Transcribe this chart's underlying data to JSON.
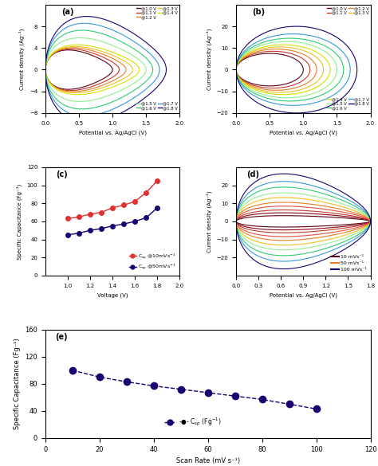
{
  "panel_a": {
    "label": "(a)",
    "ylim": [
      -8,
      12
    ],
    "yticks": [
      -8,
      -4,
      0,
      4,
      8
    ],
    "xlim": [
      0.0,
      2.0
    ],
    "xticks": [
      0.0,
      0.5,
      1.0,
      1.5,
      2.0
    ],
    "xlabel": "Potential vs. Ag/AgCl (V)",
    "ylabel": "Current density (Ag⁻¹)",
    "windows": [
      1.0,
      1.1,
      1.2,
      1.3,
      1.4,
      1.5,
      1.6,
      1.7,
      1.8
    ],
    "amplitudes": [
      3.4,
      3.6,
      3.8,
      4.0,
      4.3,
      5.5,
      6.8,
      8.0,
      9.2
    ],
    "colors": [
      "#5c0010",
      "#c0392b",
      "#e67e22",
      "#f0c020",
      "#d4e000",
      "#90ee90",
      "#2ecc71",
      "#3498db",
      "#1a0070"
    ],
    "legend1": [
      [
        "@1.0 V",
        "#5c0010"
      ],
      [
        "@1.1 V",
        "#c0392b"
      ],
      [
        "@1.2 V",
        "#e67e22"
      ],
      [
        "@1.3 V",
        "#f0c020"
      ],
      [
        "@1.4 V",
        "#d4e000"
      ]
    ],
    "legend2": [
      [
        "@1.5 V",
        "#90ee90"
      ],
      [
        "@1.6 V",
        "#2ecc71"
      ],
      [
        "@1.7 V",
        "#3498db"
      ],
      [
        "@1.8 V",
        "#1a0070"
      ]
    ]
  },
  "panel_b": {
    "label": "(b)",
    "ylim": [
      -20,
      30
    ],
    "yticks": [
      -20,
      -10,
      0,
      10,
      20
    ],
    "xlim": [
      0.0,
      2.0
    ],
    "xticks": [
      0.0,
      0.5,
      1.0,
      1.5,
      2.0
    ],
    "xlabel": "Potential vs. Ag/AgCl (V)",
    "ylabel": "Current density (Ag⁻¹)",
    "windows": [
      1.0,
      1.1,
      1.2,
      1.3,
      1.4,
      1.5,
      1.6,
      1.7,
      1.8
    ],
    "amplitudes": [
      7.5,
      8.5,
      9.5,
      10.5,
      11.5,
      13.0,
      14.5,
      16.5,
      20.0
    ],
    "colors": [
      "#5c0010",
      "#c0392b",
      "#e67e22",
      "#f0c020",
      "#d4e000",
      "#90ee90",
      "#2ecc71",
      "#3498db",
      "#1a0070"
    ],
    "legend1": [
      [
        "@1.0 V",
        "#5c0010"
      ],
      [
        "@1.1 V",
        "#c0392b"
      ],
      [
        "@1.2 V",
        "#e67e22"
      ],
      [
        "@1.3 V",
        "#f0c020"
      ]
    ],
    "legend2": [
      [
        "@1.4 V",
        "#d4e000"
      ],
      [
        "@1.5 V",
        "#90ee90"
      ],
      [
        "@1.6 V",
        "#2ecc71"
      ],
      [
        "@1.7 V",
        "#3498db"
      ],
      [
        "@1.8 V",
        "#1a0070"
      ]
    ]
  },
  "panel_c": {
    "label": "(c)",
    "xlim": [
      0.8,
      2.0
    ],
    "xticks": [
      1.0,
      1.2,
      1.4,
      1.6,
      1.8,
      2.0
    ],
    "ylim": [
      0,
      120
    ],
    "yticks": [
      0,
      20,
      40,
      60,
      80,
      100,
      120
    ],
    "xlabel": "Voltage (V)",
    "ylabel": "Specific Capacitance (Fg⁻¹)",
    "voltages": [
      1.0,
      1.1,
      1.2,
      1.3,
      1.4,
      1.5,
      1.6,
      1.7,
      1.8
    ],
    "Csp_10": [
      63,
      65,
      68,
      70,
      75,
      78,
      82,
      92,
      105
    ],
    "Csp_50": [
      45,
      47,
      50,
      52,
      55,
      57,
      60,
      64,
      75
    ],
    "color_10": "#e03030",
    "color_50": "#1a0070",
    "legend1": "C$_{sp}$ @10mVs$^{-1}$",
    "legend2": "C$_{sp}$ @50mVs$^{-1}$"
  },
  "panel_d": {
    "label": "(d)",
    "ylim": [
      -30,
      30
    ],
    "yticks": [
      -20,
      -10,
      0,
      10,
      20
    ],
    "xlim": [
      0.0,
      1.8
    ],
    "xticks": [
      0.0,
      0.3,
      0.6,
      0.9,
      1.2,
      1.5,
      1.8
    ],
    "xlabel": "Potential vs. Ag/AgCl (V)",
    "ylabel": "Current density (Ag⁻¹)",
    "amplitudes_d": [
      3.0,
      4.5,
      6.0,
      8.0,
      10.0,
      12.5,
      15.0,
      18.0,
      21.0,
      25.0
    ],
    "colors_d": [
      "#5c0010",
      "#8b0010",
      "#c0392b",
      "#e74c3c",
      "#e67e22",
      "#f0c020",
      "#90ee90",
      "#2ecc71",
      "#3498db",
      "#1a0070"
    ],
    "legend_items": [
      [
        "10 mVs⁻¹",
        "#5c0010"
      ],
      [
        "50 mVs⁻¹",
        "#e67e22"
      ],
      [
        "100 mVs⁻¹",
        "#1a0070"
      ]
    ]
  },
  "panel_e": {
    "label": "(e)",
    "xlim": [
      0,
      120
    ],
    "xticks": [
      0,
      20,
      40,
      60,
      80,
      100,
      120
    ],
    "ylim": [
      0,
      160
    ],
    "yticks": [
      0,
      40,
      80,
      120,
      160
    ],
    "xlabel": "Scan Rate (mV s⁻¹)",
    "ylabel": "Specific Capacitance (Fg⁻¹)",
    "scan_rates": [
      10,
      20,
      30,
      40,
      50,
      60,
      70,
      80,
      90,
      100
    ],
    "Csp_e": [
      100,
      90,
      83,
      77,
      72,
      67,
      62,
      57,
      50,
      43
    ],
    "color_e": "#1a0070",
    "legend_e": "-●- C$_{sp}$ (Fg$^{-1}$)"
  }
}
